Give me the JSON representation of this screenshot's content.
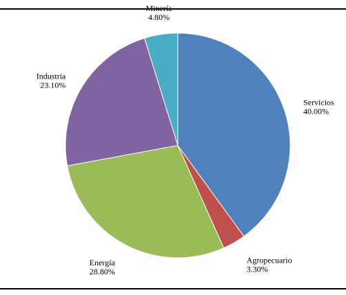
{
  "chart_data": {
    "type": "pie",
    "title": "",
    "start_angle_deg": 0,
    "direction": "clockwise",
    "slices": [
      {
        "name": "Servicios",
        "value_label": "40.00%",
        "value": 40.0,
        "color": "#4f81bd"
      },
      {
        "name": "Agropecuario",
        "value_label": "3.30%",
        "value": 3.3,
        "color": "#c0504d"
      },
      {
        "name": "Energía",
        "value_label": "28.80%",
        "value": 28.8,
        "color": "#9bbb59"
      },
      {
        "name": "Industria",
        "value_label": "23.10%",
        "value": 23.1,
        "color": "#8064a2"
      },
      {
        "name": "Minería",
        "value_label": "4.80%",
        "value": 4.8,
        "color": "#4bacc6"
      }
    ]
  }
}
